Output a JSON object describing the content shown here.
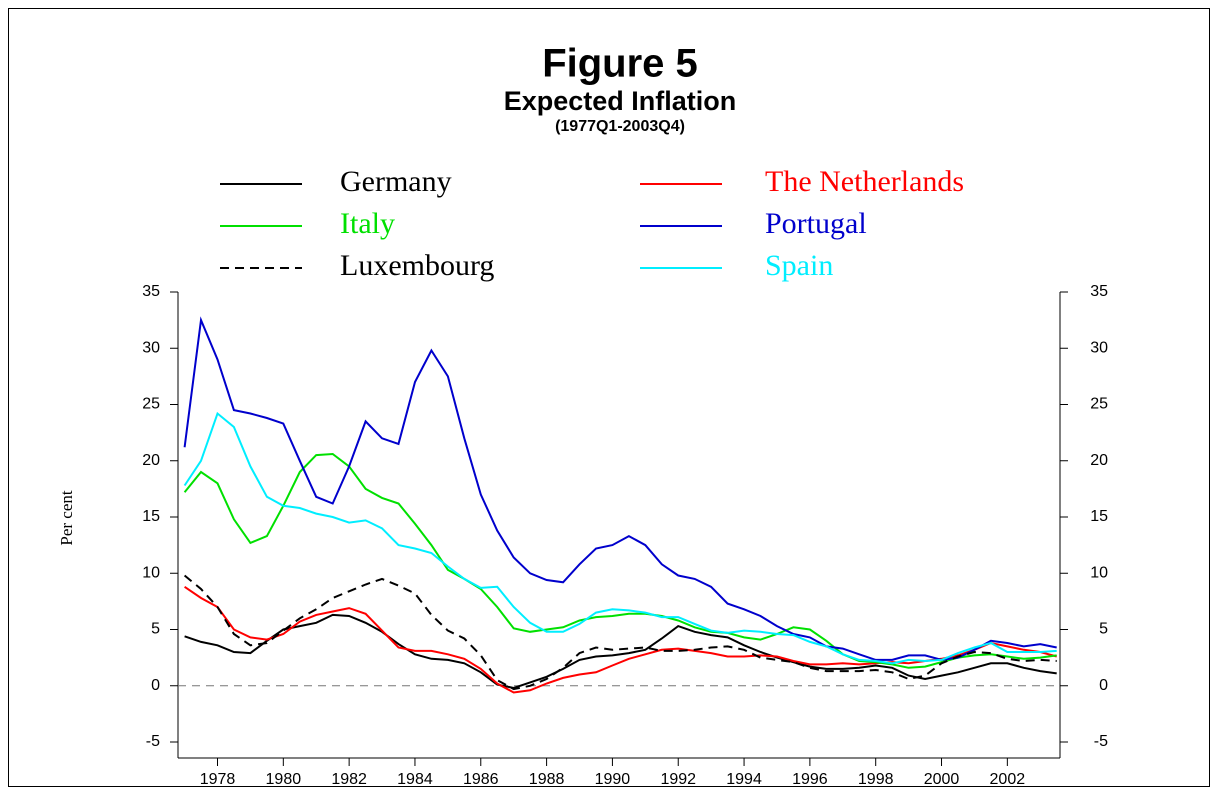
{
  "chart_data": {
    "type": "line",
    "title": "Figure 5",
    "subtitle": "Expected Inflation",
    "period": "(1977Q1-2003Q4)",
    "ylabel": "Per cent",
    "x": [
      1977,
      1977.5,
      1978,
      1978.5,
      1979,
      1979.5,
      1980,
      1980.5,
      1981,
      1981.5,
      1982,
      1982.5,
      1983,
      1983.5,
      1984,
      1984.5,
      1985,
      1985.5,
      1986,
      1986.5,
      1987,
      1987.5,
      1988,
      1988.5,
      1989,
      1989.5,
      1990,
      1990.5,
      1991,
      1991.5,
      1992,
      1992.5,
      1993,
      1993.5,
      1994,
      1994.5,
      1995,
      1995.5,
      1996,
      1996.5,
      1997,
      1997.5,
      1998,
      1998.5,
      1999,
      1999.5,
      2000,
      2000.5,
      2001,
      2001.5,
      2002,
      2002.5,
      2003,
      2003.5
    ],
    "xlim": [
      1976.8,
      2003.6
    ],
    "xticks": [
      1978,
      1980,
      1982,
      1984,
      1986,
      1988,
      1990,
      1992,
      1994,
      1996,
      1998,
      2000,
      2002
    ],
    "ylim": [
      -5,
      35
    ],
    "yticks": [
      -5,
      0,
      5,
      10,
      15,
      20,
      25,
      30,
      35
    ],
    "y2lim": [
      -5,
      35
    ],
    "y2ticks": [
      -5,
      0,
      5,
      10,
      15,
      20,
      25,
      30,
      35
    ],
    "reference_line": 0,
    "series": [
      {
        "name": "Germany",
        "color": "#000000",
        "values": [
          4.4,
          3.9,
          3.6,
          3.0,
          2.9,
          4.0,
          5.0,
          5.3,
          5.6,
          6.3,
          6.2,
          5.6,
          4.8,
          3.7,
          2.8,
          2.4,
          2.3,
          2.0,
          1.2,
          0.1,
          -0.2,
          0.3,
          0.8,
          1.5,
          2.3,
          2.6,
          2.7,
          2.9,
          3.2,
          4.2,
          5.3,
          4.8,
          4.5,
          4.3,
          3.6,
          3.0,
          2.5,
          2.1,
          1.7,
          1.5,
          1.5,
          1.6,
          1.8,
          1.6,
          0.9,
          0.6,
          0.9,
          1.2,
          1.6,
          2.0,
          2.0,
          1.6,
          1.3,
          1.1
        ]
      },
      {
        "name": "The Netherlands",
        "color": "#ff0000",
        "values": [
          8.8,
          7.8,
          7.0,
          5.0,
          4.3,
          4.1,
          4.6,
          5.7,
          6.3,
          6.6,
          6.9,
          6.4,
          4.9,
          3.4,
          3.1,
          3.1,
          2.8,
          2.4,
          1.5,
          0.2,
          -0.6,
          -0.4,
          0.2,
          0.7,
          1.0,
          1.2,
          1.8,
          2.4,
          2.8,
          3.2,
          3.3,
          3.1,
          2.9,
          2.6,
          2.6,
          2.7,
          2.6,
          2.2,
          1.9,
          1.9,
          2.0,
          1.9,
          2.0,
          2.1,
          2.0,
          2.2,
          2.4,
          2.7,
          3.2,
          3.8,
          3.5,
          3.2,
          3.0,
          2.6
        ]
      },
      {
        "name": "Italy",
        "color": "#00e000",
        "values": [
          17.2,
          19.0,
          18.0,
          14.8,
          12.7,
          13.3,
          16.0,
          19.0,
          20.5,
          20.6,
          19.5,
          17.5,
          16.7,
          16.2,
          14.4,
          12.5,
          10.3,
          9.5,
          8.6,
          7.0,
          5.1,
          4.8,
          5.0,
          5.2,
          5.8,
          6.1,
          6.2,
          6.4,
          6.4,
          6.2,
          5.8,
          5.2,
          4.8,
          4.7,
          4.3,
          4.1,
          4.6,
          5.2,
          5.0,
          4.0,
          2.8,
          2.2,
          2.1,
          1.9,
          1.6,
          1.7,
          2.1,
          2.5,
          2.7,
          2.8,
          2.6,
          2.4,
          2.5,
          2.7
        ]
      },
      {
        "name": "Portugal",
        "color": "#0000cc",
        "values": [
          21.2,
          32.5,
          29.0,
          24.5,
          24.2,
          23.8,
          23.3,
          20.0,
          16.8,
          16.2,
          19.5,
          23.5,
          22.0,
          21.5,
          27.0,
          29.8,
          27.5,
          22.0,
          17.0,
          13.8,
          11.4,
          10.0,
          9.4,
          9.2,
          10.8,
          12.2,
          12.5,
          13.3,
          12.5,
          10.8,
          9.8,
          9.5,
          8.8,
          7.3,
          6.8,
          6.2,
          5.3,
          4.6,
          4.3,
          3.5,
          3.3,
          2.8,
          2.3,
          2.3,
          2.7,
          2.7,
          2.3,
          2.5,
          3.2,
          4.0,
          3.8,
          3.5,
          3.7,
          3.4
        ]
      },
      {
        "name": "Luxembourg",
        "color": "#000000",
        "dash": true,
        "values": [
          9.8,
          8.6,
          7.0,
          4.6,
          3.6,
          3.8,
          4.9,
          6.0,
          6.8,
          7.8,
          8.4,
          9.0,
          9.5,
          8.9,
          8.2,
          6.3,
          4.9,
          4.2,
          2.7,
          0.5,
          -0.3,
          0.0,
          0.6,
          1.6,
          2.9,
          3.4,
          3.2,
          3.3,
          3.4,
          3.1,
          3.1,
          3.2,
          3.4,
          3.5,
          3.2,
          2.5,
          2.3,
          2.1,
          1.6,
          1.3,
          1.3,
          1.3,
          1.4,
          1.2,
          0.6,
          0.9,
          2.0,
          2.6,
          3.0,
          2.9,
          2.4,
          2.2,
          2.3,
          2.2
        ]
      },
      {
        "name": "Spain",
        "color": "#00eeff",
        "values": [
          17.8,
          20.0,
          24.2,
          23.0,
          19.5,
          16.8,
          16.0,
          15.8,
          15.3,
          15.0,
          14.5,
          14.7,
          14.0,
          12.5,
          12.2,
          11.8,
          10.6,
          9.5,
          8.7,
          8.8,
          7.0,
          5.6,
          4.8,
          4.8,
          5.5,
          6.5,
          6.8,
          6.7,
          6.5,
          6.1,
          6.1,
          5.5,
          4.9,
          4.7,
          4.9,
          4.8,
          4.6,
          4.5,
          3.9,
          3.5,
          2.8,
          2.3,
          2.2,
          2.0,
          2.3,
          2.2,
          2.3,
          2.9,
          3.4,
          3.8,
          3.0,
          3.0,
          3.0,
          3.1
        ]
      }
    ]
  }
}
